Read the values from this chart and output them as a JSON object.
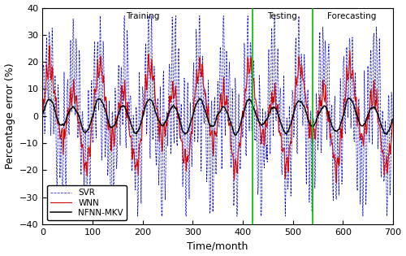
{
  "title": "",
  "xlabel": "Time/month",
  "ylabel": "Percentage error (%)",
  "xlim": [
    0,
    700
  ],
  "ylim": [
    -40,
    40
  ],
  "yticks": [
    -40,
    -30,
    -20,
    -10,
    0,
    10,
    20,
    30,
    40
  ],
  "xticks": [
    0,
    100,
    200,
    300,
    400,
    500,
    600,
    700
  ],
  "vline1": 420,
  "vline2": 540,
  "vline_color": "#00bb00",
  "label_training": "Training",
  "label_testing": "Testing",
  "label_forecasting": "Forecasting",
  "label_nfnn": "NFNN-MKV",
  "label_wnn": "WNN",
  "label_svr": "SVR",
  "color_nfnn": "#000000",
  "color_wnn": "#dd0000",
  "color_svr": "#0000cc",
  "n_points": 700,
  "seed": 7
}
